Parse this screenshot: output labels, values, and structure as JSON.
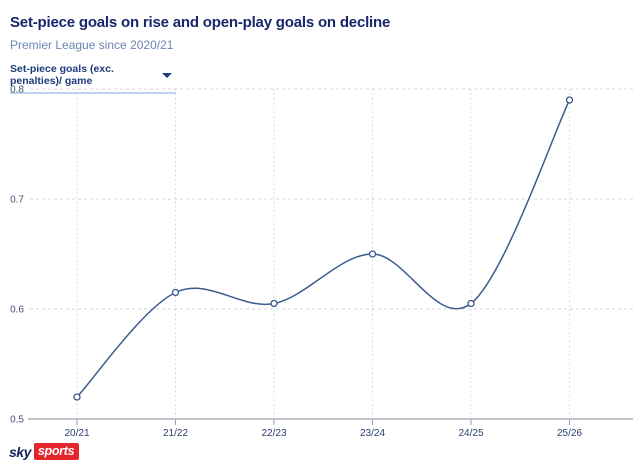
{
  "header": {
    "title": "Set-piece goals on rise and open-play goals on decline",
    "subtitle": "Premier League since 2020/21",
    "dropdown": {
      "selected": "Set-piece goals (exc. penalties)/ game"
    }
  },
  "chart_data": {
    "type": "line",
    "title": "Set-piece goals on rise and open-play goals on decline",
    "ylabel": "Set-piece goals (exc. penalties)/ game",
    "categories": [
      "20/21",
      "21/22",
      "22/23",
      "23/24",
      "24/25",
      "25/26"
    ],
    "values": [
      0.52,
      0.615,
      0.605,
      0.65,
      0.605,
      0.79
    ],
    "ylim": [
      0.5,
      0.8
    ],
    "y_ticks": [
      0.5,
      0.6,
      0.7,
      0.8
    ],
    "grid": "dashed",
    "legend": "none",
    "line_color": "#3b5a8f",
    "marker": "open-circle",
    "grid_color": "#d2d5da",
    "axis_color": "#9aa0ae"
  },
  "footer": {
    "logo": {
      "sky": "sky",
      "sports": "sports"
    }
  }
}
